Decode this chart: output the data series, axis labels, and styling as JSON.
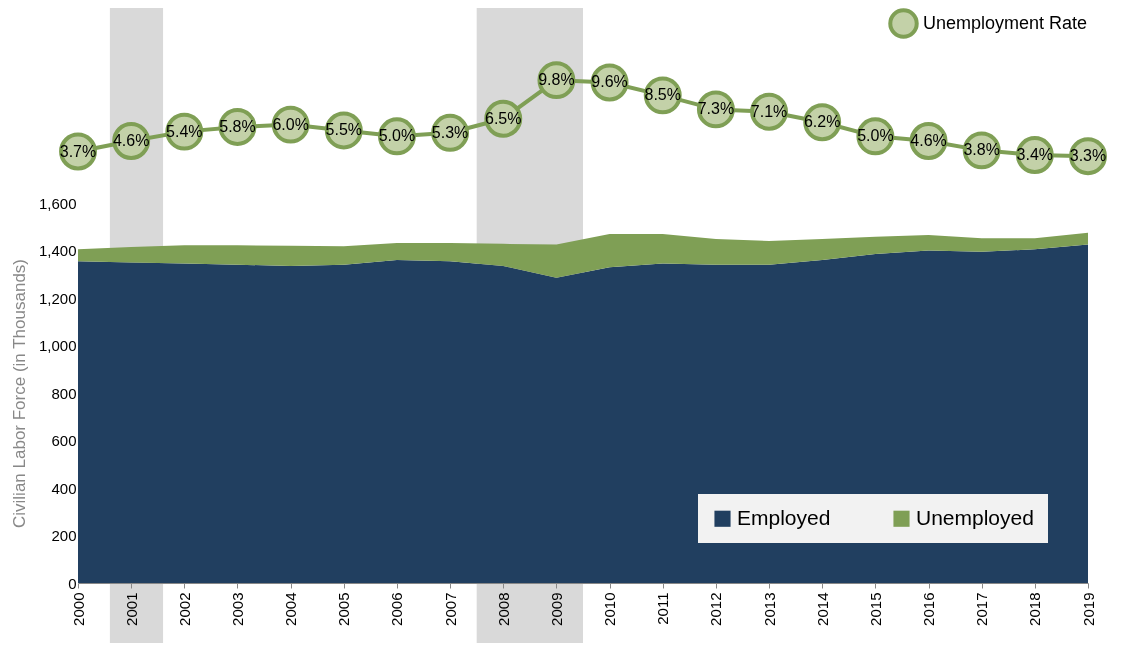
{
  "chart_data": [
    {
      "type": "line",
      "x": [
        2000,
        2001,
        2002,
        2003,
        2004,
        2005,
        2006,
        2007,
        2008,
        2009,
        2010,
        2011,
        2012,
        2013,
        2014,
        2015,
        2016,
        2017,
        2018,
        2019
      ],
      "xlim": [
        2000,
        2019
      ],
      "legend": "top right",
      "marker": "circle",
      "series": [
        {
          "name": "Unemployment Rate",
          "color": "#7f9f55",
          "values": [
            3.7,
            4.6,
            5.4,
            5.8,
            6.0,
            5.5,
            5.0,
            5.3,
            6.5,
            9.8,
            9.6,
            8.5,
            7.3,
            7.1,
            6.2,
            5.0,
            4.6,
            3.8,
            3.4,
            3.3
          ],
          "value_labels": [
            "3.7%",
            "4.6%",
            "5.4%",
            "5.8%",
            "6.0%",
            "5.5%",
            "5.0%",
            "5.3%",
            "6.5%",
            "9.8%",
            "9.6%",
            "8.5%",
            "7.3%",
            "7.1%",
            "6.2%",
            "5.0%",
            "4.6%",
            "3.8%",
            "3.4%",
            "3.3%"
          ]
        }
      ],
      "bands": [
        {
          "axis": "x",
          "from": 2000.6,
          "to": 2001.6,
          "color": "#d9d9d9"
        },
        {
          "axis": "x",
          "from": 2007.5,
          "to": 2009.5,
          "color": "#d9d9d9"
        }
      ]
    },
    {
      "type": "area",
      "stacked": true,
      "ylabel": "Civilian Labor Force (in Thousands)",
      "x": [
        2000,
        2001,
        2002,
        2003,
        2004,
        2005,
        2006,
        2007,
        2008,
        2009,
        2010,
        2011,
        2012,
        2013,
        2014,
        2015,
        2016,
        2017,
        2018,
        2019
      ],
      "xlim": [
        2000,
        2019
      ],
      "xticks": [
        2000,
        2001,
        2002,
        2003,
        2004,
        2005,
        2006,
        2007,
        2008,
        2009,
        2010,
        2011,
        2012,
        2013,
        2014,
        2015,
        2016,
        2017,
        2018,
        2019
      ],
      "ylim": [
        0,
        1600
      ],
      "yticks": [
        0,
        200,
        400,
        600,
        800,
        {
          "value": 1000,
          "label": "1,000"
        },
        {
          "value": 1200,
          "label": "1,200"
        },
        {
          "value": 1400,
          "label": "1,400"
        },
        {
          "value": 1600,
          "label": "1,600"
        }
      ],
      "grid": false,
      "legend": "bottom right",
      "series": [
        {
          "name": "Employed",
          "color": "#213f60",
          "values": [
            1355,
            1350,
            1345,
            1340,
            1335,
            1340,
            1360,
            1355,
            1335,
            1285,
            1330,
            1345,
            1340,
            1340,
            1360,
            1385,
            1400,
            1395,
            1405,
            1425
          ]
        },
        {
          "name": "Unemployed",
          "color": "#7f9f55",
          "values": [
            50,
            65,
            77,
            82,
            85,
            78,
            72,
            77,
            93,
            140,
            140,
            125,
            108,
            100,
            88,
            73,
            65,
            57,
            47,
            50
          ]
        }
      ],
      "bands": [
        {
          "axis": "x",
          "from": 2000.6,
          "to": 2001.6,
          "color": "#d9d9d9"
        },
        {
          "axis": "x",
          "from": 2007.5,
          "to": 2009.5,
          "color": "#d9d9d9"
        }
      ]
    }
  ]
}
